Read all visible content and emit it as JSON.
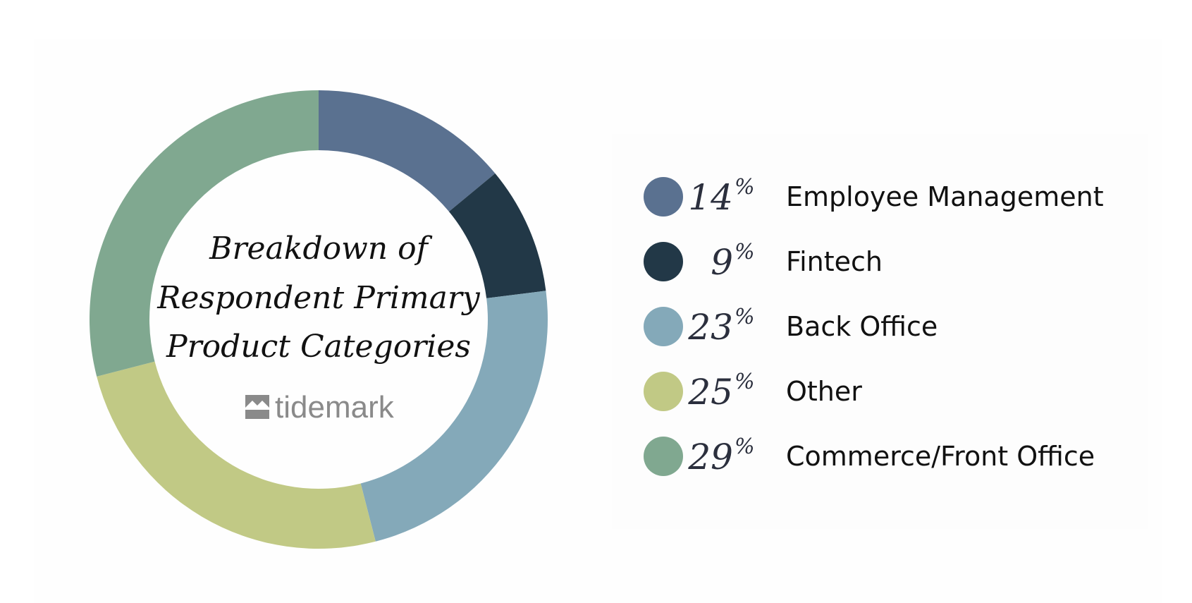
{
  "chart_data": {
    "type": "pie",
    "donut": true,
    "title_lines": [
      "Breakdown of",
      "Respondent Primary",
      "Product Categories"
    ],
    "logo_text": "tidemark",
    "slices": [
      {
        "label": "Employee Management",
        "value": 14,
        "display": "14",
        "color": "#5a7190"
      },
      {
        "label": "Fintech",
        "value": 9,
        "display": "9",
        "color": "#223847"
      },
      {
        "label": "Back Office",
        "value": 23,
        "display": "23",
        "color": "#84a9b9"
      },
      {
        "label": "Other",
        "value": 25,
        "display": "25",
        "color": "#c1c985"
      },
      {
        "label": "Commerce/Front Office",
        "value": 29,
        "display": "29",
        "color": "#80a890"
      }
    ],
    "percent_sign": "%",
    "legend_position": "right"
  }
}
